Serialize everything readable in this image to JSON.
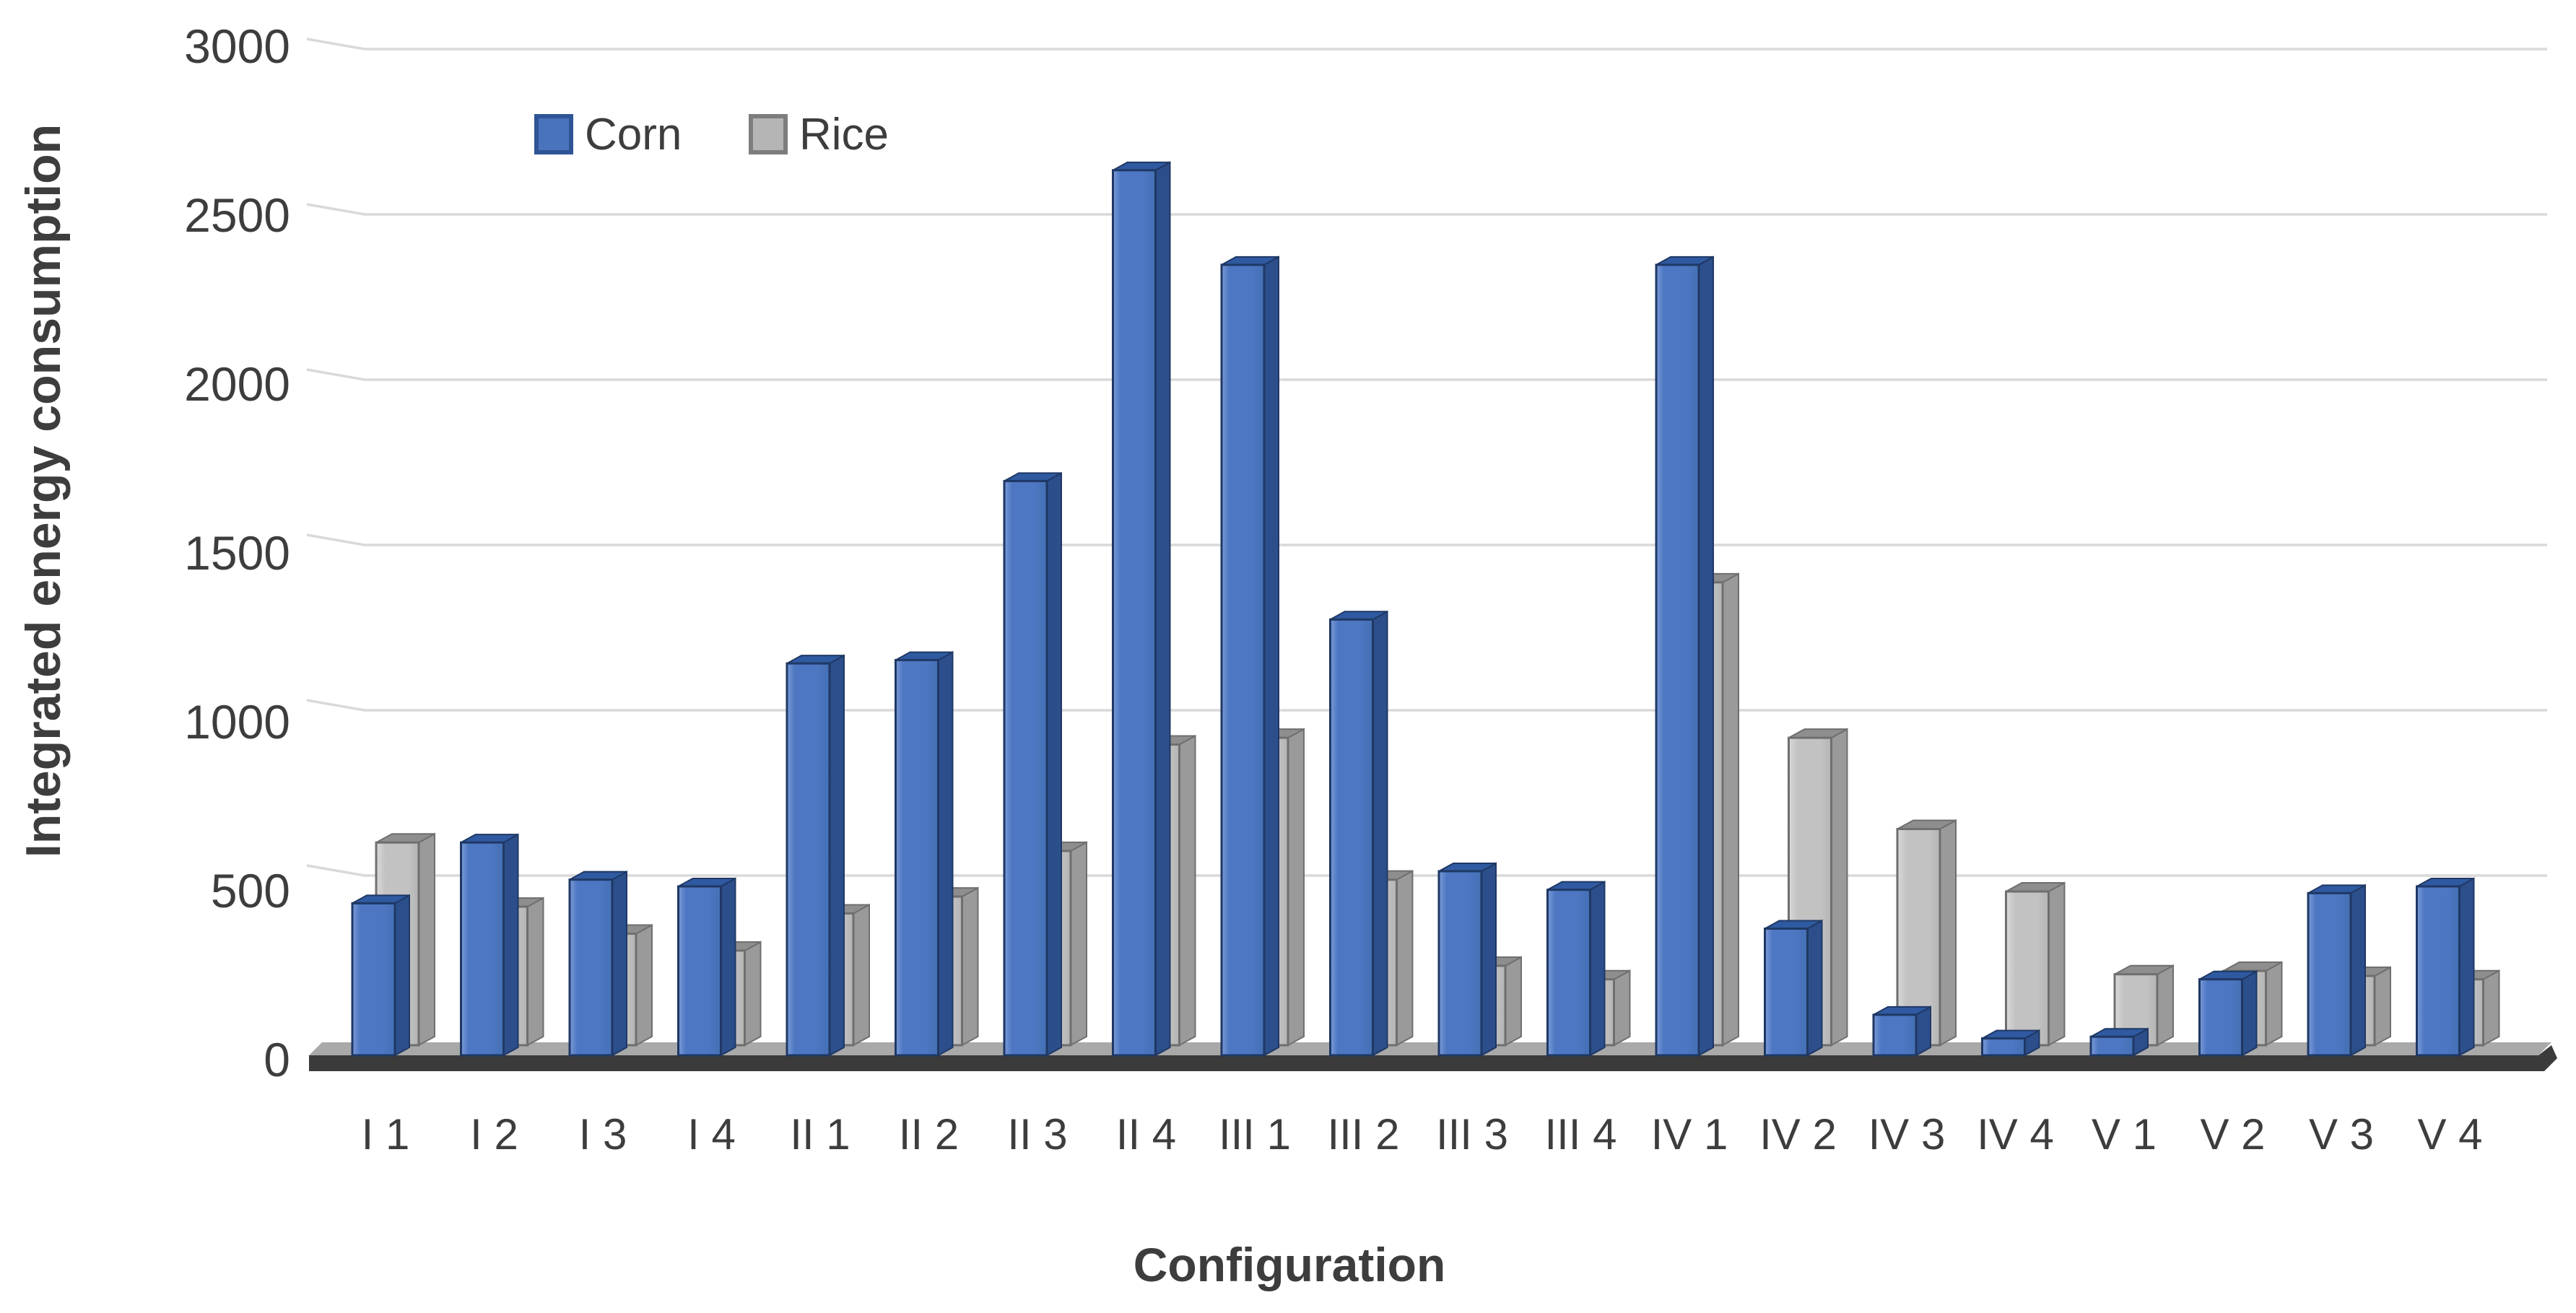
{
  "chart_data": {
    "type": "bar",
    "style": "3d-clustered-column",
    "title": "",
    "xlabel": "Configuration",
    "ylabel": "Integrated energy consumption",
    "ylim": [
      0,
      3000
    ],
    "yticks": [
      0,
      500,
      1000,
      1500,
      2000,
      2500,
      3000
    ],
    "grid": true,
    "legend_position": "top-left-inside",
    "categories": [
      "I 1",
      "I 2",
      "I 3",
      "I 4",
      "II 1",
      "II 2",
      "II 3",
      "II 4",
      "III 1",
      "III 2",
      "III 3",
      "III 4",
      "IV 1",
      "IV 2",
      "IV 3",
      "IV 4",
      "V 1",
      "V 2",
      "V 3",
      "V 4"
    ],
    "series": [
      {
        "name": "Corn",
        "color": "#4d77c2",
        "values": [
          450,
          630,
          520,
          500,
          1160,
          1170,
          1700,
          2620,
          2340,
          1290,
          545,
          490,
          2340,
          375,
          120,
          50,
          55,
          225,
          480,
          500
        ]
      },
      {
        "name": "Rice",
        "color": "#c2c2c2",
        "values": [
          600,
          410,
          330,
          280,
          390,
          440,
          575,
          890,
          910,
          490,
          235,
          195,
          1370,
          910,
          640,
          455,
          210,
          220,
          205,
          195
        ]
      }
    ]
  },
  "colors": {
    "corn_fill": "#4d77c2",
    "corn_fill_light": "#7b9bd8",
    "corn_edge": "#1f3864",
    "corn_side": "#2c4f8c",
    "corn_top": "#2f5aa1",
    "rice_fill": "#c2c2c2",
    "rice_fill_light": "#d9d9d9",
    "rice_edge": "#6f6f6f",
    "rice_side": "#9a9a9a",
    "rice_top": "#8e8e8e",
    "legend_corn_fill": "#4a73bd",
    "legend_corn_edge": "#2f5496",
    "legend_rice_fill": "#b5b5b5",
    "legend_rice_edge": "#7d7d7d",
    "grid": "#d9d9d9",
    "axis_text": "#3d3d3d",
    "floor_front": "#3b3b3b",
    "floor_top": "#a9a9a9"
  }
}
